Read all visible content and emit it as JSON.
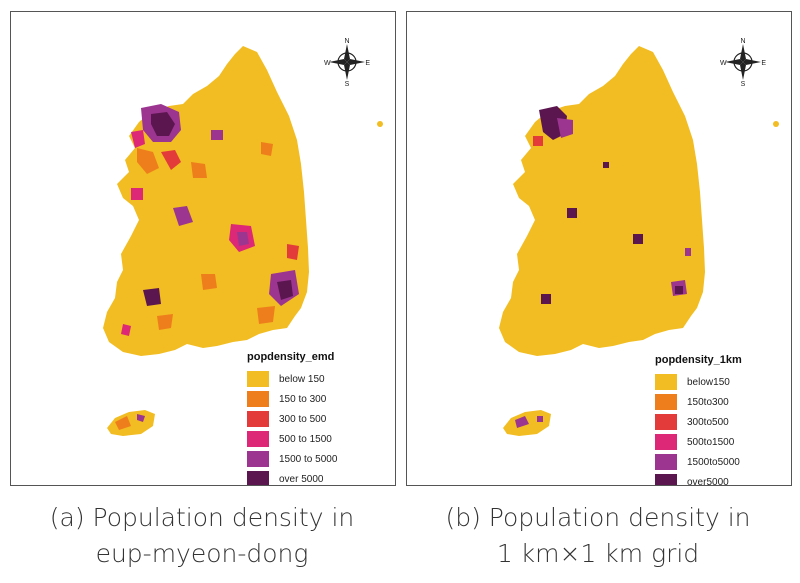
{
  "compass": {
    "n": "N",
    "s": "S",
    "e": "E",
    "w": "W"
  },
  "colors": {
    "below_150": "#f2bd22",
    "c150_300": "#ee7e1c",
    "c300_500": "#e33b3a",
    "c500_1500": "#dc2876",
    "c1500_5000": "#9c3590",
    "over_5000": "#5b1650"
  },
  "panel_a": {
    "legend": {
      "title": "popdensity_emd",
      "items": [
        {
          "label": "below 150",
          "color": "#f2bd22"
        },
        {
          "label": "150 to 300",
          "color": "#ee7e1c"
        },
        {
          "label": "300 to 500",
          "color": "#e33b3a"
        },
        {
          "label": "500 to 1500",
          "color": "#dc2876"
        },
        {
          "label": "1500 to 5000",
          "color": "#9c3590"
        },
        {
          "label": "over 5000",
          "color": "#5b1650"
        }
      ]
    },
    "caption_line1": "(a) Population density in",
    "caption_line2": "eup-myeon-dong"
  },
  "panel_b": {
    "legend": {
      "title": "popdensity_1km",
      "items": [
        {
          "label": "below150",
          "color": "#f2bd22"
        },
        {
          "label": "150to300",
          "color": "#ee7e1c"
        },
        {
          "label": "300to500",
          "color": "#e33b3a"
        },
        {
          "label": "500to1500",
          "color": "#dc2876"
        },
        {
          "label": "1500to5000",
          "color": "#9c3590"
        },
        {
          "label": "over5000",
          "color": "#5b1650"
        }
      ]
    },
    "caption_line1": "(b) Population density in",
    "caption_line2": "1 km×1 km grid"
  }
}
